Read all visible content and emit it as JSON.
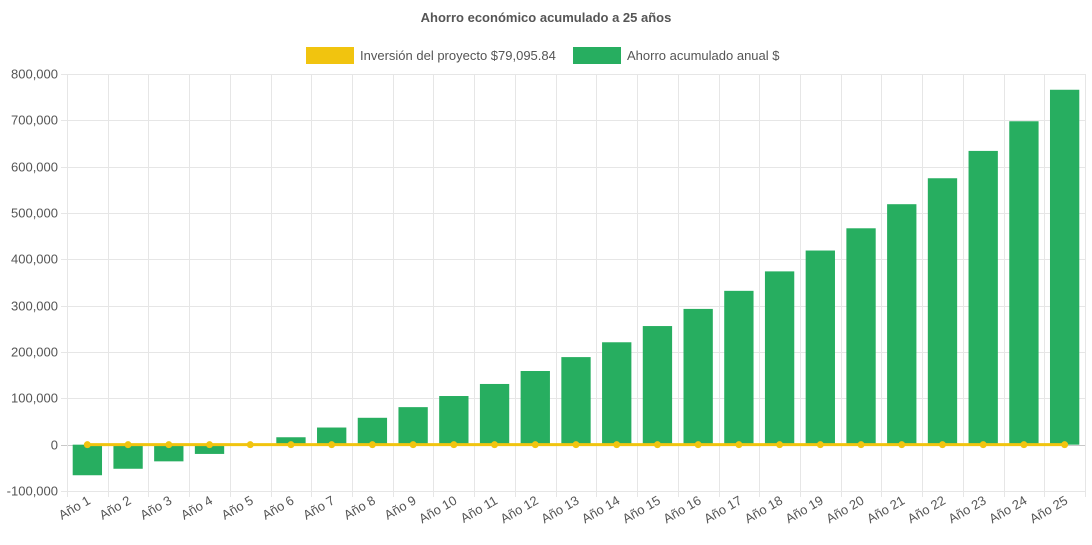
{
  "chart_data": {
    "type": "bar",
    "title": "Ahorro económico acumulado a 25 años",
    "xlabel": "",
    "ylabel": "",
    "ylim": [
      -100000,
      800000
    ],
    "y_ticks": [
      -100000,
      0,
      100000,
      200000,
      300000,
      400000,
      500000,
      600000,
      700000,
      800000
    ],
    "y_tick_labels": [
      "-100,000",
      "0",
      "100,000",
      "200,000",
      "300,000",
      "400,000",
      "500,000",
      "600,000",
      "700,000",
      "800,000"
    ],
    "grid": true,
    "legend_position": "top",
    "categories": [
      "Año 1",
      "Año 2",
      "Año 3",
      "Año 4",
      "Año 5",
      "Año 6",
      "Año 7",
      "Año 8",
      "Año 9",
      "Año 10",
      "Año 11",
      "Año 12",
      "Año 13",
      "Año 14",
      "Año 15",
      "Año 16",
      "Año 17",
      "Año 18",
      "Año 19",
      "Año 20",
      "Año 21",
      "Año 22",
      "Año 23",
      "Año 24",
      "Año 25"
    ],
    "series": [
      {
        "name": "Inversión del proyecto $79,095.84",
        "type": "line",
        "color": "#f1c40f",
        "values": [
          0,
          0,
          0,
          0,
          0,
          0,
          0,
          0,
          0,
          0,
          0,
          0,
          0,
          0,
          0,
          0,
          0,
          0,
          0,
          0,
          0,
          0,
          0,
          0,
          0
        ]
      },
      {
        "name": "Ahorro acumulado anual $",
        "type": "bar",
        "color": "#27ae60",
        "values": [
          -66000,
          -52000,
          -36000,
          -20000,
          -2000,
          16000,
          37000,
          58000,
          81000,
          105000,
          131000,
          159000,
          189000,
          221000,
          256000,
          293000,
          332000,
          374000,
          419000,
          467000,
          519000,
          575000,
          634000,
          698000,
          766000
        ]
      }
    ]
  }
}
